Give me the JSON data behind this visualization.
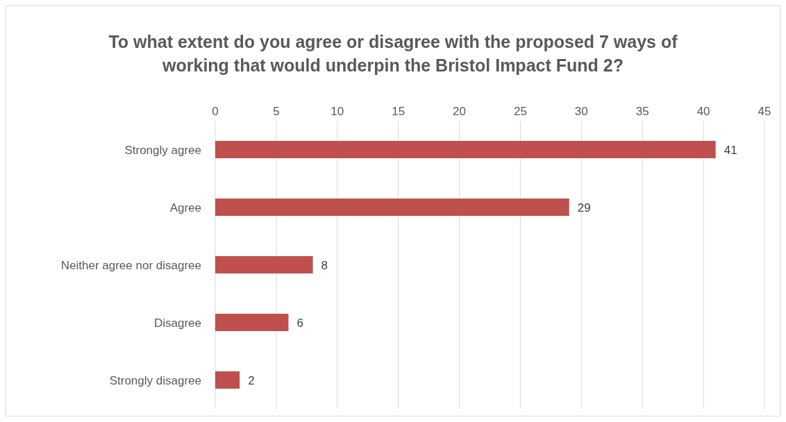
{
  "chart_data": {
    "type": "bar",
    "orientation": "horizontal",
    "title": "To what extent do you agree or disagree with the proposed 7 ways of working that would underpin the Bristol Impact Fund 2?",
    "categories": [
      "Strongly agree",
      "Agree",
      "Neither agree nor disagree",
      "Disagree",
      "Strongly disagree"
    ],
    "values": [
      41,
      29,
      8,
      6,
      2
    ],
    "color": "#c0504d",
    "xlim": [
      0,
      45
    ],
    "xticks": [
      0,
      5,
      10,
      15,
      20,
      25,
      30,
      35,
      40,
      45
    ],
    "grid": "x",
    "data_labels": true
  }
}
